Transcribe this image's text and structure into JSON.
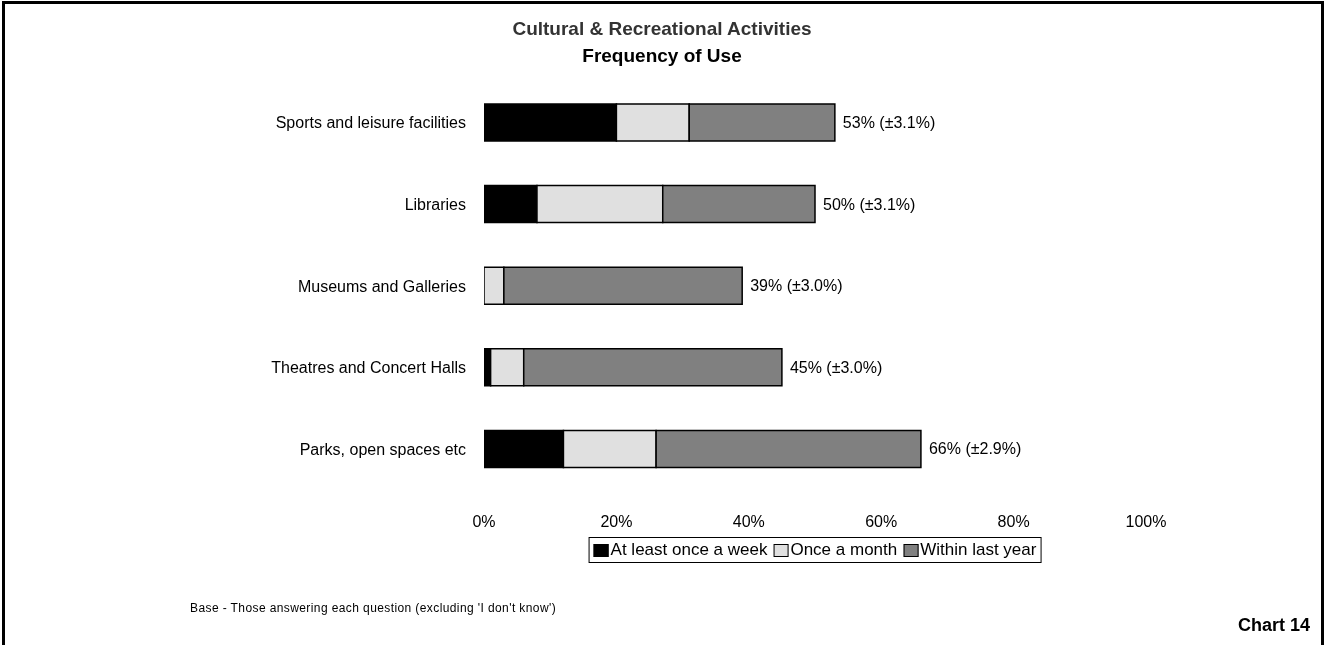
{
  "chart_data": {
    "type": "bar",
    "orientation": "horizontal",
    "stacked": true,
    "title": "Cultural & Recreational Activities",
    "subtitle": "Frequency of Use",
    "categories": [
      "Sports and leisure facilities",
      "Libraries",
      "Museums and Galleries",
      "Theatres and Concert Halls",
      "Parks, open spaces etc"
    ],
    "series": [
      {
        "name": "At least once a week",
        "color": "#000000",
        "values": [
          20,
          8,
          0,
          1,
          12
        ]
      },
      {
        "name": "Once a month",
        "color": "#e0e0e0",
        "values": [
          11,
          19,
          3,
          5,
          14
        ]
      },
      {
        "name": "Within last year",
        "color": "#808080",
        "values": [
          22,
          23,
          36,
          39,
          40
        ]
      }
    ],
    "totals": [
      "53% (±3.1%)",
      "50% (±3.1%)",
      "39% (±3.0%)",
      "45% (±3.0%)",
      "66% (±2.9%)"
    ],
    "xlim": [
      0,
      100
    ],
    "xticks": [
      {
        "value": 0,
        "label": "0%"
      },
      {
        "value": 20,
        "label": "20%"
      },
      {
        "value": 40,
        "label": "40%"
      },
      {
        "value": 60,
        "label": "60%"
      },
      {
        "value": 80,
        "label": "80%"
      },
      {
        "value": 100,
        "label": "100%"
      }
    ],
    "legend": "bottom",
    "annotations": [
      "Base - Those answering each question (excluding 'I don't know')",
      "Chart 14"
    ]
  }
}
